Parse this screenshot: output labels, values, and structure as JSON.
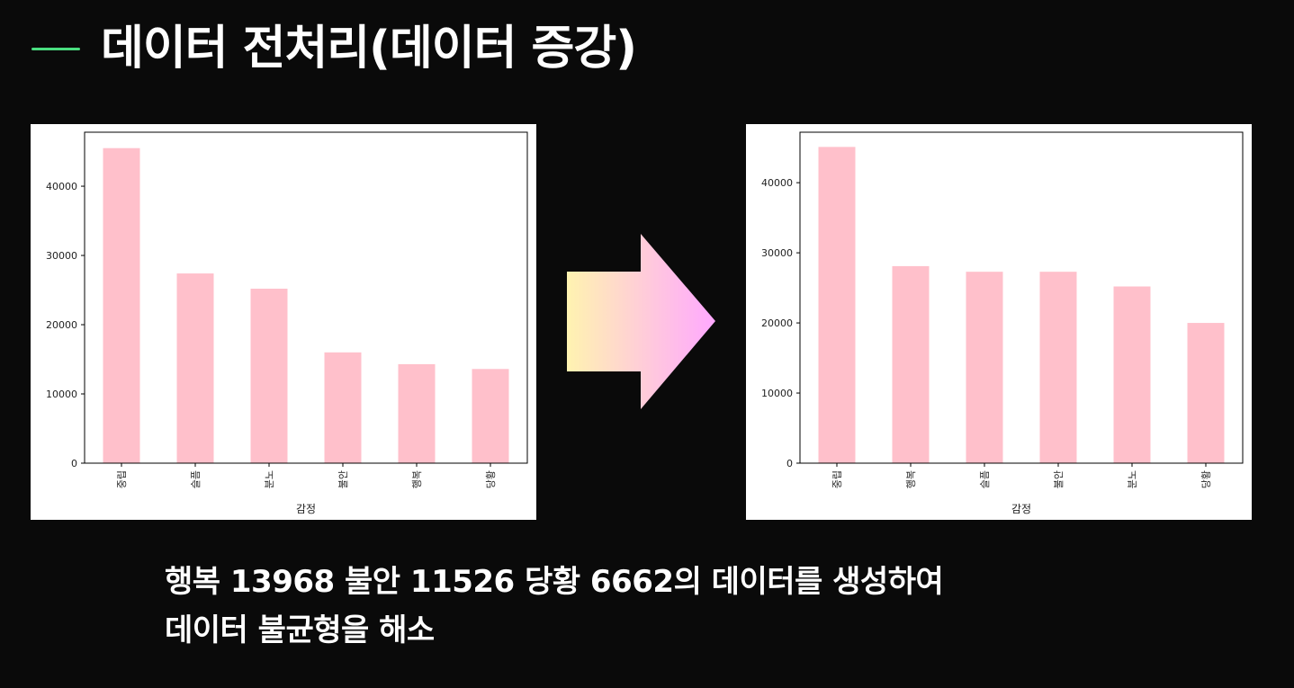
{
  "slide": {
    "title": "데이터 전처리(데이터 증강)",
    "accent_color": "#4ade80",
    "caption_line1": "행복 13968 불안 11526 당황 6662의 데이터를 생성하여",
    "caption_line2": "데이터 불균형을 해소"
  },
  "colors": {
    "bar": "#ffc0cb",
    "arrow_start": "#fff3b0",
    "arrow_end": "#ffa8ff"
  },
  "arrow": {
    "icon": "right-arrow-icon"
  },
  "chart_data": [
    {
      "type": "bar",
      "title": "",
      "xlabel": "감정",
      "ylabel": "",
      "categories": [
        "중립",
        "슬픔",
        "분노",
        "불안",
        "행복",
        "당황"
      ],
      "values": [
        45500,
        27400,
        25200,
        16000,
        14300,
        13600
      ],
      "ylim": [
        0,
        47800
      ],
      "yticks": [
        0,
        10000,
        20000,
        30000,
        40000
      ],
      "grid": false
    },
    {
      "type": "bar",
      "title": "",
      "xlabel": "감정",
      "ylabel": "",
      "categories": [
        "중립",
        "행복",
        "슬픔",
        "불안",
        "분노",
        "당황"
      ],
      "values": [
        45100,
        28100,
        27300,
        27300,
        25200,
        20000
      ],
      "ylim": [
        0,
        47200
      ],
      "yticks": [
        0,
        10000,
        20000,
        30000,
        40000
      ],
      "grid": false
    }
  ]
}
